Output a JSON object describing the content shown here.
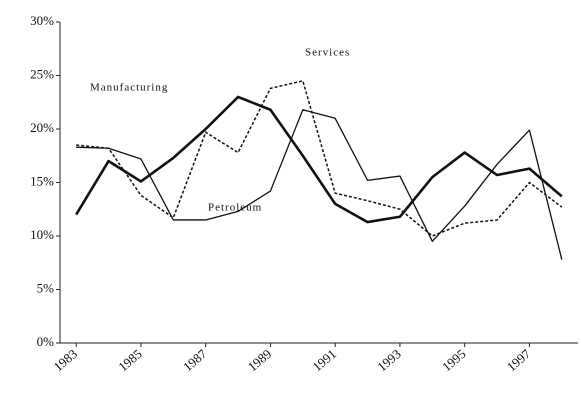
{
  "chart_data": {
    "type": "line",
    "x": [
      1983,
      1984,
      1985,
      1986,
      1987,
      1988,
      1989,
      1990,
      1991,
      1992,
      1993,
      1994,
      1995,
      1996,
      1997,
      1998
    ],
    "series": [
      {
        "name": "Manufacturing",
        "color": "#111111",
        "style": "thick",
        "values": [
          12,
          17,
          15.1,
          17.3,
          20,
          23,
          21.8,
          17.5,
          13,
          11.3,
          11.8,
          15.5,
          17.8,
          15.7,
          16.3,
          13.7
        ]
      },
      {
        "name": "Petroleum",
        "color": "#111111",
        "style": "thin",
        "values": [
          18.3,
          18.2,
          17.2,
          11.5,
          11.5,
          12.3,
          14.2,
          21.8,
          21,
          15.2,
          15.6,
          9.5,
          12.8,
          16.7,
          19.9,
          7.8
        ]
      },
      {
        "name": "Services",
        "color": "#111111",
        "style": "dotted",
        "values": [
          18.5,
          18.2,
          13.8,
          11.7,
          19.7,
          17.8,
          23.8,
          24.5,
          14,
          13.3,
          12.5,
          10,
          11.2,
          11.5,
          15,
          12.7
        ]
      }
    ],
    "xlim": [
      1982.5,
      1998.5
    ],
    "xticks": [
      1983,
      1985,
      1987,
      1989,
      1991,
      1993,
      1995,
      1997
    ],
    "ylim": [
      0,
      30
    ],
    "yticks": [
      {
        "value": 0,
        "label": "0%"
      },
      {
        "value": 5,
        "label": "5%"
      },
      {
        "value": 10,
        "label": "10%"
      },
      {
        "value": 15,
        "label": "15%"
      },
      {
        "value": 20,
        "label": "20%"
      },
      {
        "value": 25,
        "label": "25%"
      },
      {
        "value": 30,
        "label": "30%"
      }
    ],
    "grid": false
  }
}
